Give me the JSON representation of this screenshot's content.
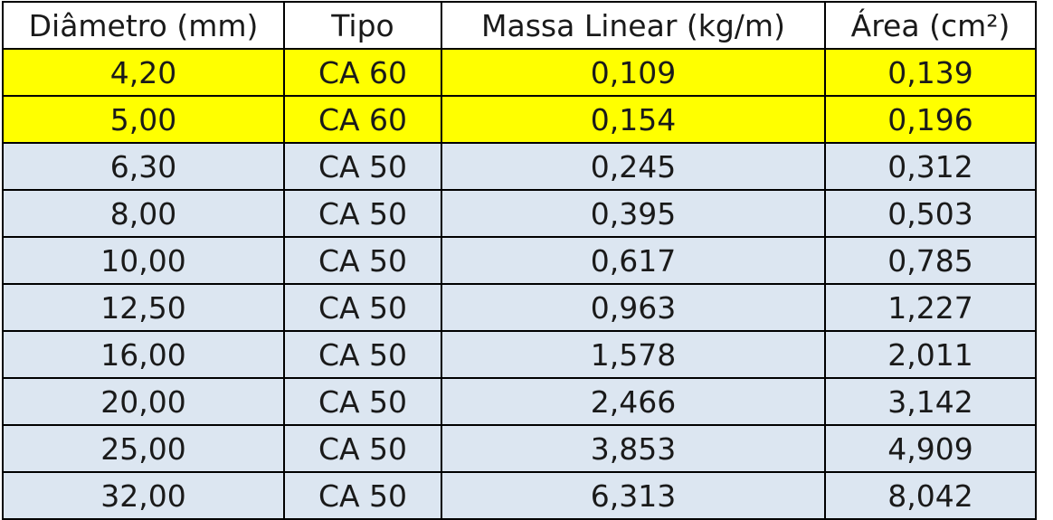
{
  "table": {
    "headers": [
      "Diâmetro (mm)",
      "Tipo",
      "Massa Linear (kg/m)",
      "Área (cm²)"
    ],
    "highlight_color": "#ffff00",
    "row_color": "#dce6f1",
    "rows": [
      {
        "highlight": true,
        "cells": [
          "4,20",
          "CA 60",
          "0,109",
          "0,139"
        ]
      },
      {
        "highlight": true,
        "cells": [
          "5,00",
          "CA 60",
          "0,154",
          "0,196"
        ]
      },
      {
        "highlight": false,
        "cells": [
          "6,30",
          "CA 50",
          "0,245",
          "0,312"
        ]
      },
      {
        "highlight": false,
        "cells": [
          "8,00",
          "CA 50",
          "0,395",
          "0,503"
        ]
      },
      {
        "highlight": false,
        "cells": [
          "10,00",
          "CA 50",
          "0,617",
          "0,785"
        ]
      },
      {
        "highlight": false,
        "cells": [
          "12,50",
          "CA 50",
          "0,963",
          "1,227"
        ]
      },
      {
        "highlight": false,
        "cells": [
          "16,00",
          "CA 50",
          "1,578",
          "2,011"
        ]
      },
      {
        "highlight": false,
        "cells": [
          "20,00",
          "CA 50",
          "2,466",
          "3,142"
        ]
      },
      {
        "highlight": false,
        "cells": [
          "25,00",
          "CA 50",
          "3,853",
          "4,909"
        ]
      },
      {
        "highlight": false,
        "cells": [
          "32,00",
          "CA 50",
          "6,313",
          "8,042"
        ]
      }
    ]
  }
}
